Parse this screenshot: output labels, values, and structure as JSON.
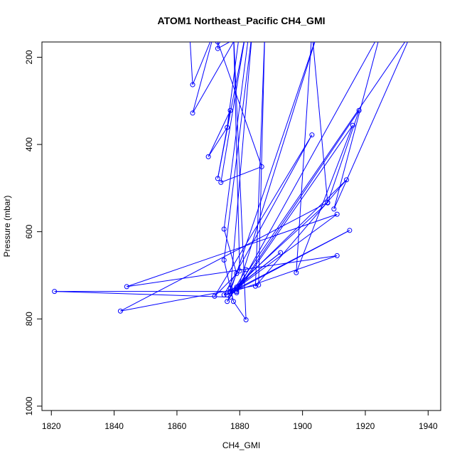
{
  "chart_data": {
    "type": "line",
    "title": "ATOM1 Northeast_Pacific CH4_GMI",
    "xlabel": "CH4_GMI",
    "ylabel": "Pressure (mbar)",
    "xlim": [
      1817,
      1944
    ],
    "ylim": [
      1010,
      165
    ],
    "y_reversed": true,
    "x_ticks": [
      1820,
      1840,
      1860,
      1880,
      1900,
      1920,
      1940
    ],
    "x_tick_labels": [
      "1820",
      "1840",
      "1860",
      "1880",
      "1900",
      "1920",
      "1940"
    ],
    "y_ticks": [
      200,
      400,
      600,
      800,
      1000
    ],
    "y_tick_labels": [
      "200",
      "400",
      "600",
      "800",
      "1000"
    ],
    "series_color": "#0000ff",
    "marker": "open-circle",
    "series": [
      {
        "points": [
          [
            1864,
            140
          ],
          [
            1865,
            263
          ],
          [
            1872,
            140
          ],
          [
            1865,
            328
          ],
          [
            1880,
            140
          ],
          [
            1876,
            361
          ],
          [
            1870,
            428
          ],
          [
            1877,
            322
          ],
          [
            1873,
            478
          ],
          [
            1882,
            140
          ],
          [
            1874,
            487
          ],
          [
            1887,
            451
          ],
          [
            1873,
            165
          ],
          [
            1873,
            180
          ],
          [
            1883,
            140
          ],
          [
            1875,
            594
          ],
          [
            1879,
            696
          ],
          [
            1877,
            730
          ],
          [
            1877,
            750
          ],
          [
            1821,
            737
          ],
          [
            1877,
            737
          ],
          [
            1884,
            140
          ],
          [
            1875,
            665
          ],
          [
            1878,
            760
          ],
          [
            1882,
            802
          ],
          [
            1878,
            140
          ],
          [
            1880,
            690
          ],
          [
            1872,
            748
          ],
          [
            1903,
            378
          ],
          [
            1875,
            745
          ],
          [
            1911,
            655
          ],
          [
            1844,
            726
          ],
          [
            1911,
            560
          ],
          [
            1878,
            735
          ],
          [
            1915,
            597
          ],
          [
            1876,
            745
          ],
          [
            1893,
            648
          ],
          [
            1879,
            727
          ],
          [
            1914,
            481
          ],
          [
            1885,
            725
          ],
          [
            1888,
            140
          ],
          [
            1886,
            722
          ],
          [
            1842,
            782
          ],
          [
            1908,
            533
          ],
          [
            1877,
            737
          ],
          [
            1905,
            140
          ],
          [
            1879,
            740
          ],
          [
            1916,
            356
          ],
          [
            1898,
            694
          ],
          [
            1903,
            140
          ],
          [
            1908,
            534
          ],
          [
            1918,
            322
          ],
          [
            1879,
            737
          ],
          [
            1925,
            140
          ],
          [
            1910,
            548
          ],
          [
            1935,
            140
          ],
          [
            1876,
            760
          ],
          [
            1882,
            687
          ]
        ]
      }
    ]
  }
}
